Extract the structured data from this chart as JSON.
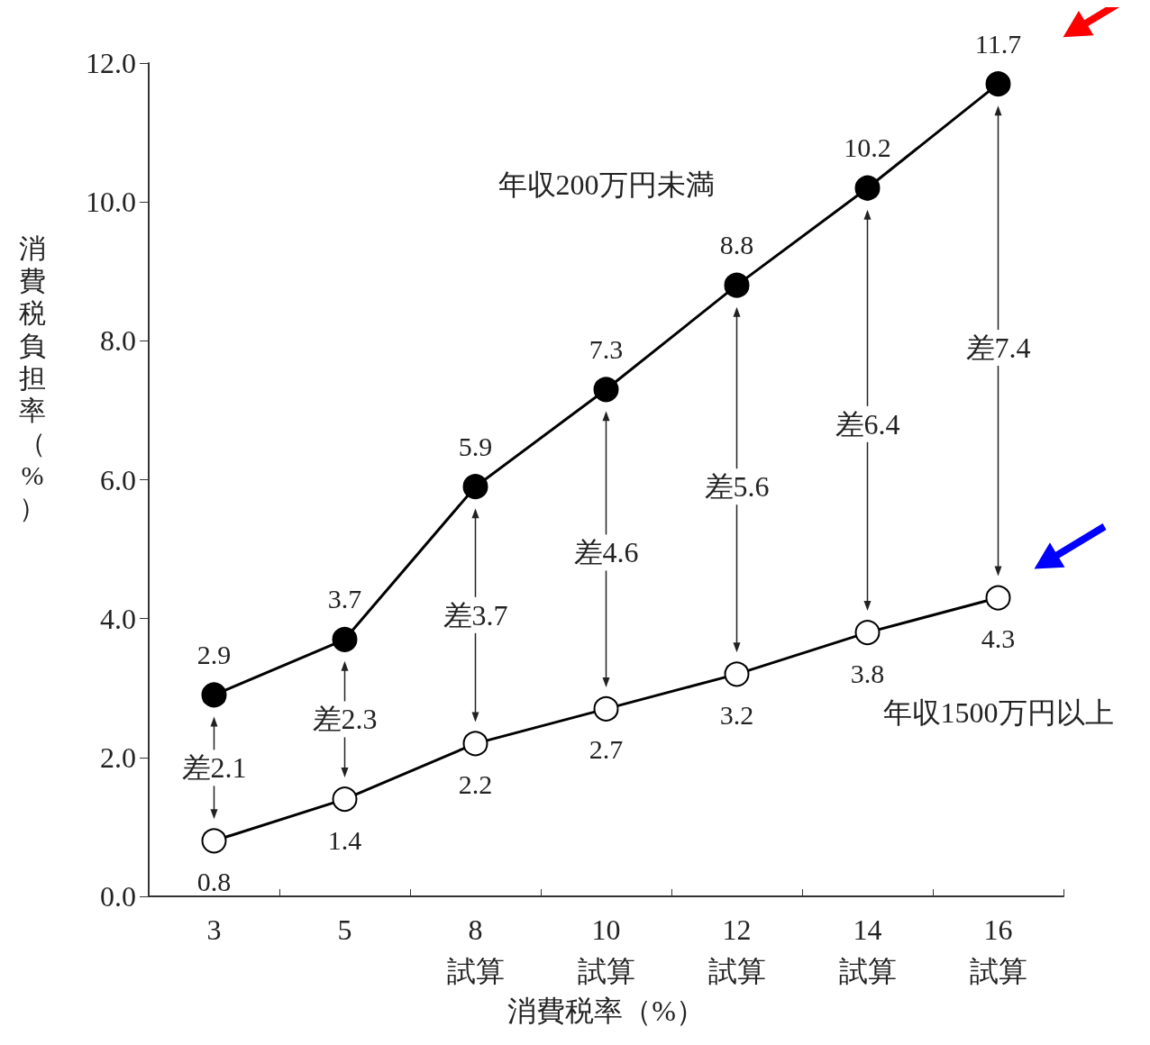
{
  "chart_data": {
    "type": "line",
    "xlabel": "消費税率（%）",
    "ylabel": "消費税負担率（%）",
    "categories": [
      "3",
      "5",
      "8\n試算",
      "10\n試算",
      "12\n試算",
      "14\n試算",
      "16\n試算"
    ],
    "series": [
      {
        "name": "年収200万円未満",
        "color": "#000000",
        "values": [
          2.9,
          3.7,
          5.9,
          7.3,
          8.8,
          10.2,
          11.7
        ]
      },
      {
        "name": "年収1500万円以上",
        "color": "#ffffff",
        "values": [
          0.8,
          1.4,
          2.2,
          2.7,
          3.2,
          3.8,
          4.3
        ]
      }
    ],
    "ylim": [
      0,
      12
    ],
    "yticks": [
      {
        "value": 0,
        "label": "0.0"
      },
      {
        "value": 2,
        "label": "2.0"
      },
      {
        "value": 4,
        "label": "4.0"
      },
      {
        "value": 6,
        "label": "6.0"
      },
      {
        "value": 8,
        "label": "8.0"
      },
      {
        "value": 10,
        "label": "10.0"
      },
      {
        "value": 12,
        "label": "12.0"
      }
    ],
    "annotations": [
      "差2.1",
      "差2.3",
      "差3.7",
      "差4.6",
      "差5.6",
      "差6.4",
      "差7.4"
    ],
    "data_labels": true,
    "marker": "circle",
    "line_style": "solid",
    "grid": false,
    "legend": false
  }
}
